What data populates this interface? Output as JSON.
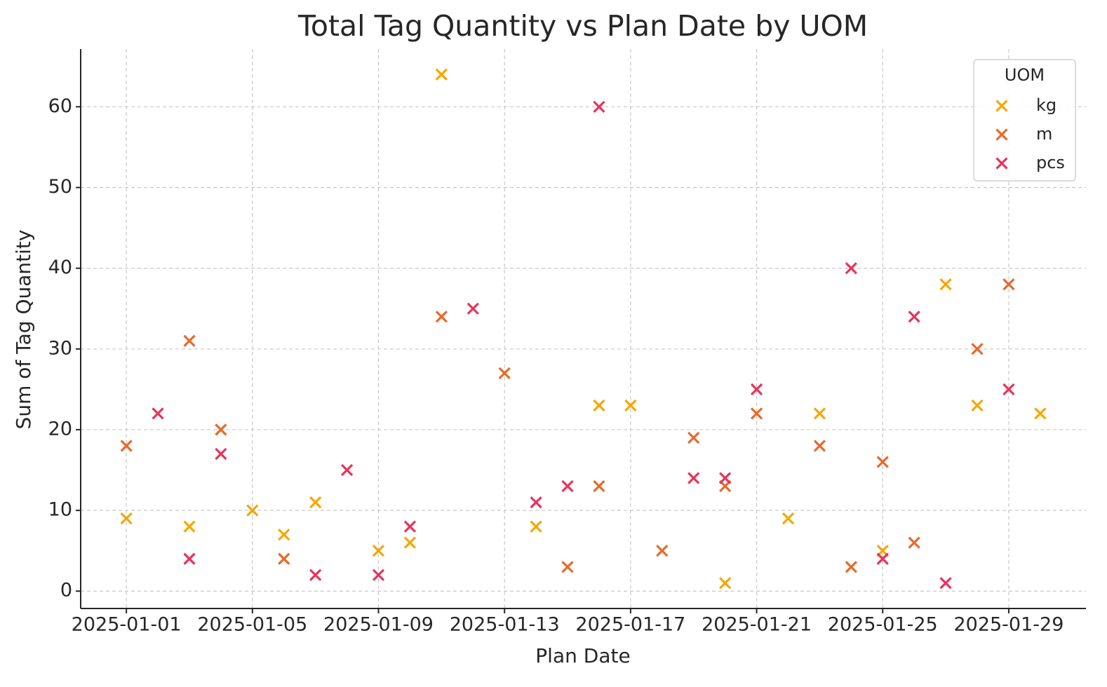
{
  "chart_data": {
    "type": "scatter",
    "title": "Total Tag Quantity vs Plan Date by UOM",
    "x_label": "Plan Date",
    "y_label": "Sum of Tag Quantity",
    "legend_title": "UOM",
    "legend_position": "upper right",
    "grid": true,
    "marker": "x",
    "ylim": [
      -2.15,
      67.15
    ],
    "yticks": [
      0,
      10,
      20,
      30,
      40,
      50,
      60
    ],
    "xticks": [
      "2025-01-01",
      "2025-01-05",
      "2025-01-09",
      "2025-01-13",
      "2025-01-17",
      "2025-01-21",
      "2025-01-25",
      "2025-01-29"
    ],
    "series": [
      {
        "name": "kg",
        "color": "#f5a700",
        "x": [
          "2025-01-01",
          "2025-01-03",
          "2025-01-05",
          "2025-01-06",
          "2025-01-07",
          "2025-01-09",
          "2025-01-10",
          "2025-01-11",
          "2025-01-14",
          "2025-01-16",
          "2025-01-17",
          "2025-01-20",
          "2025-01-22",
          "2025-01-23",
          "2025-01-25",
          "2025-01-27",
          "2025-01-28",
          "2025-01-30"
        ],
        "values": [
          9,
          8,
          10,
          7,
          11,
          5,
          6,
          64,
          8,
          23,
          23,
          1,
          9,
          22,
          5,
          38,
          23,
          22
        ]
      },
      {
        "name": "m",
        "color": "#e8692a",
        "x": [
          "2025-01-01",
          "2025-01-03",
          "2025-01-04",
          "2025-01-06",
          "2025-01-11",
          "2025-01-13",
          "2025-01-15",
          "2025-01-16",
          "2025-01-18",
          "2025-01-19",
          "2025-01-20",
          "2025-01-21",
          "2025-01-23",
          "2025-01-24",
          "2025-01-25",
          "2025-01-26",
          "2025-01-28",
          "2025-01-29"
        ],
        "values": [
          18,
          31,
          20,
          4,
          34,
          27,
          3,
          13,
          5,
          19,
          13,
          22,
          18,
          3,
          16,
          6,
          30,
          38
        ]
      },
      {
        "name": "pcs",
        "color": "#e8335a",
        "x": [
          "2025-01-02",
          "2025-01-03",
          "2025-01-04",
          "2025-01-07",
          "2025-01-08",
          "2025-01-09",
          "2025-01-10",
          "2025-01-12",
          "2025-01-14",
          "2025-01-15",
          "2025-01-16",
          "2025-01-19",
          "2025-01-20",
          "2025-01-21",
          "2025-01-24",
          "2025-01-25",
          "2025-01-26",
          "2025-01-27",
          "2025-01-29"
        ],
        "values": [
          22,
          4,
          17,
          2,
          15,
          2,
          8,
          35,
          11,
          13,
          60,
          14,
          14,
          25,
          40,
          4,
          34,
          1,
          25
        ]
      }
    ]
  }
}
